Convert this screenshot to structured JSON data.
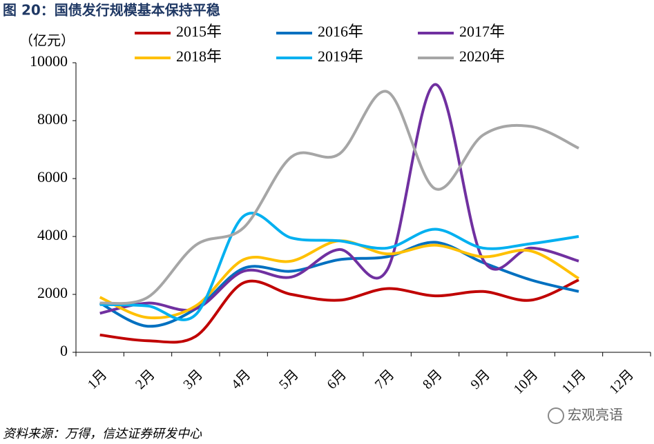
{
  "chart_data": {
    "type": "line",
    "title": "图 20：国债发行规模基本保持平稳",
    "y_label": "（亿元）",
    "source": "资料来源：万得，信达证券研发中心",
    "watermark": "宏观亮语",
    "categories": [
      "1月",
      "2月",
      "3月",
      "4月",
      "5月",
      "6月",
      "7月",
      "8月",
      "9月",
      "10月",
      "11月",
      "12月"
    ],
    "ylim": [
      0,
      10000
    ],
    "yticks": [
      0,
      2000,
      4000,
      6000,
      8000,
      10000
    ],
    "smooth": true,
    "series": [
      {
        "name": "2015年",
        "color": "#c00000",
        "values": [
          600,
          400,
          550,
          2400,
          2000,
          1800,
          2200,
          1950,
          2100,
          1800,
          2500,
          null
        ]
      },
      {
        "name": "2016年",
        "color": "#0070c0",
        "values": [
          1700,
          900,
          1500,
          2900,
          2800,
          3200,
          3300,
          3800,
          3100,
          2500,
          2100,
          null
        ]
      },
      {
        "name": "2017年",
        "color": "#7030a0",
        "values": [
          1350,
          1700,
          1500,
          2800,
          2600,
          3550,
          2850,
          9250,
          3200,
          3600,
          3150,
          null
        ]
      },
      {
        "name": "2018年",
        "color": "#ffc000",
        "values": [
          1900,
          1200,
          1600,
          3200,
          3150,
          3850,
          3400,
          3700,
          3300,
          3500,
          2550,
          null
        ]
      },
      {
        "name": "2019年",
        "color": "#00b0f0",
        "values": [
          1650,
          1600,
          1300,
          4700,
          3950,
          3850,
          3600,
          4250,
          3600,
          3750,
          4000,
          null
        ]
      },
      {
        "name": "2020年",
        "color": "#a6a6a6",
        "values": [
          1700,
          1900,
          3700,
          4300,
          6750,
          6850,
          9000,
          5650,
          7500,
          7800,
          7050,
          null
        ]
      }
    ]
  }
}
